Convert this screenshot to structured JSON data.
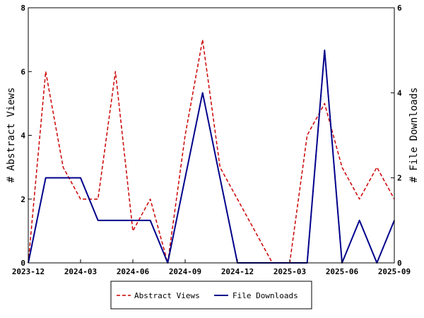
{
  "chart_data": {
    "type": "line",
    "title": "",
    "x": [
      "2023-12",
      "2024-01",
      "2024-02",
      "2024-03",
      "2024-04",
      "2024-05",
      "2024-06",
      "2024-07",
      "2024-08",
      "2024-09",
      "2024-10",
      "2024-11",
      "2024-12",
      "2025-01",
      "2025-02",
      "2025-03",
      "2025-04",
      "2025-05",
      "2025-06",
      "2025-07",
      "2025-08",
      "2025-09"
    ],
    "x_ticks": [
      "2023-12",
      "2024-03",
      "2024-06",
      "2024-09",
      "2024-12",
      "2025-03",
      "2025-06",
      "2025-09"
    ],
    "ylabel_left": "# Abstract Views",
    "ylabel_right": "# File Downloads",
    "ylim_left": [
      0,
      8
    ],
    "ylim_right": [
      0,
      6
    ],
    "yticks_left": [
      "0",
      "2",
      "4",
      "6",
      "8"
    ],
    "yticks_right": [
      "0",
      "2",
      "4",
      "6"
    ],
    "grid": false,
    "legend_position": "bottom",
    "series": [
      {
        "name": "Abstract Views",
        "axis": "left",
        "color": "#cc0000",
        "style": "dashed",
        "values": [
          0,
          6,
          3,
          2,
          2,
          6,
          1,
          2,
          0,
          4,
          7,
          3,
          2,
          1,
          0,
          0,
          4,
          5,
          3,
          2,
          3,
          2
        ]
      },
      {
        "name": "File Downloads",
        "axis": "right",
        "color": "#00008b",
        "style": "solid",
        "values": [
          0,
          2,
          2,
          2,
          1,
          1,
          1,
          1,
          0,
          2,
          4,
          2,
          0,
          0,
          0,
          0,
          0,
          5,
          0,
          1,
          0,
          1
        ]
      }
    ]
  }
}
